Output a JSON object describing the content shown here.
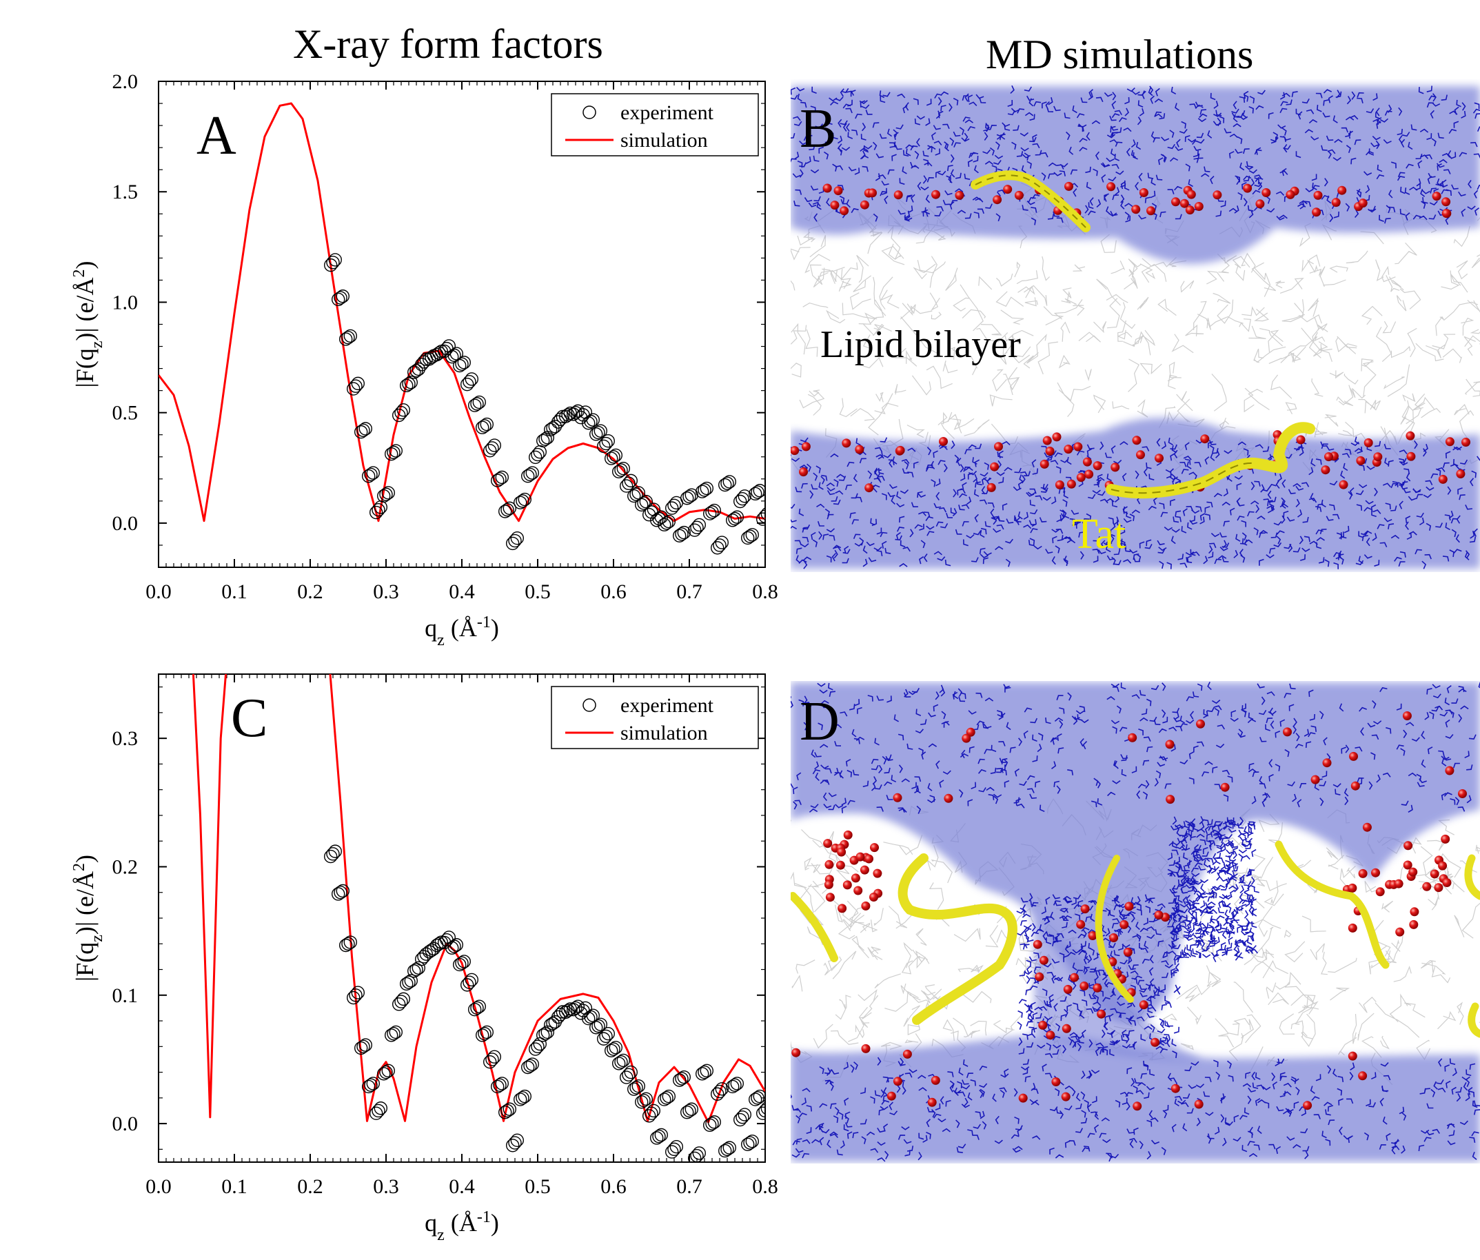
{
  "headers": {
    "left": "X-ray form factors",
    "right": "MD simulations"
  },
  "panels": {
    "A": {
      "letter": "A"
    },
    "B": {
      "letter": "B",
      "label_bilayer": "Lipid bilayer",
      "label_peptide": "Tat"
    },
    "C": {
      "letter": "C"
    },
    "D": {
      "letter": "D"
    }
  },
  "colors": {
    "simulation": "#ff0000",
    "experiment": "#000000",
    "headgroup": "#7b83d8",
    "phosphate": "#e01818",
    "peptide": "#e6e020",
    "lipid_tail": "#c9c9c9"
  },
  "chart_data": [
    {
      "panel": "A",
      "type": "line",
      "xlabel": "q_z (Å^-1)",
      "ylabel": "|F(q_z)| (e/Å^2)",
      "xlim": [
        0.0,
        0.8
      ],
      "ylim": [
        -0.2,
        2.0
      ],
      "xticks": [
        "0.0",
        "0.1",
        "0.2",
        "0.3",
        "0.4",
        "0.5",
        "0.6",
        "0.7",
        "0.8"
      ],
      "yticks": [
        "0.0",
        "0.5",
        "1.0",
        "1.5",
        "2.0"
      ],
      "legend": {
        "position": "top-right",
        "entries": [
          "experiment",
          "simulation"
        ]
      },
      "series": [
        {
          "name": "simulation",
          "style": "line",
          "x": [
            0.0,
            0.02,
            0.04,
            0.06,
            0.08,
            0.1,
            0.12,
            0.14,
            0.16,
            0.175,
            0.19,
            0.21,
            0.23,
            0.25,
            0.27,
            0.29,
            0.31,
            0.33,
            0.35,
            0.37,
            0.39,
            0.41,
            0.43,
            0.45,
            0.475,
            0.5,
            0.52,
            0.54,
            0.56,
            0.58,
            0.6,
            0.62,
            0.64,
            0.66,
            0.68,
            0.7,
            0.72,
            0.74,
            0.76,
            0.78,
            0.8
          ],
          "y": [
            0.67,
            0.58,
            0.35,
            0.01,
            0.45,
            0.95,
            1.42,
            1.75,
            1.89,
            1.9,
            1.83,
            1.55,
            1.1,
            0.66,
            0.26,
            0.01,
            0.4,
            0.67,
            0.77,
            0.78,
            0.68,
            0.48,
            0.3,
            0.14,
            0.01,
            0.19,
            0.29,
            0.34,
            0.36,
            0.34,
            0.29,
            0.21,
            0.13,
            0.06,
            0.01,
            0.05,
            0.06,
            0.05,
            0.02,
            0.03,
            0.02
          ]
        },
        {
          "name": "experiment",
          "style": "markers",
          "x": [
            0.23,
            0.24,
            0.25,
            0.26,
            0.27,
            0.28,
            0.29,
            0.3,
            0.31,
            0.32,
            0.33,
            0.34,
            0.35,
            0.36,
            0.37,
            0.38,
            0.39,
            0.4,
            0.41,
            0.42,
            0.43,
            0.44,
            0.45,
            0.46,
            0.47,
            0.48,
            0.49,
            0.5,
            0.51,
            0.52,
            0.53,
            0.54,
            0.55,
            0.56,
            0.57,
            0.58,
            0.59,
            0.6,
            0.61,
            0.62,
            0.63,
            0.64,
            0.65,
            0.66,
            0.67,
            0.68,
            0.69,
            0.7,
            0.71,
            0.72,
            0.73,
            0.74,
            0.75,
            0.76,
            0.77,
            0.78,
            0.79,
            0.8
          ],
          "y": [
            1.18,
            1.02,
            0.84,
            0.62,
            0.42,
            0.22,
            0.06,
            0.13,
            0.32,
            0.5,
            0.63,
            0.69,
            0.73,
            0.75,
            0.77,
            0.79,
            0.76,
            0.72,
            0.64,
            0.54,
            0.44,
            0.34,
            0.2,
            0.06,
            -0.08,
            0.1,
            0.22,
            0.31,
            0.38,
            0.43,
            0.47,
            0.49,
            0.5,
            0.49,
            0.46,
            0.41,
            0.36,
            0.3,
            0.24,
            0.18,
            0.13,
            0.09,
            0.05,
            0.02,
            0.0,
            0.08,
            -0.05,
            0.12,
            -0.02,
            0.15,
            0.05,
            -0.1,
            0.18,
            0.02,
            0.11,
            -0.06,
            0.14,
            0.03
          ]
        }
      ]
    },
    {
      "panel": "C",
      "type": "line",
      "xlabel": "q_z (Å^-1)",
      "ylabel": "|F(q_z)| (e/Å^2)",
      "xlim": [
        0.0,
        0.8
      ],
      "ylim": [
        -0.03,
        0.35
      ],
      "xticks": [
        "0.0",
        "0.1",
        "0.2",
        "0.3",
        "0.4",
        "0.5",
        "0.6",
        "0.7",
        "0.8"
      ],
      "yticks": [
        "0.0",
        "0.1",
        "0.2",
        "0.3"
      ],
      "legend": {
        "position": "top-right",
        "entries": [
          "experiment",
          "simulation"
        ]
      },
      "series": [
        {
          "name": "simulation",
          "style": "line",
          "x": [
            0.045,
            0.055,
            0.065,
            0.068,
            0.072,
            0.082,
            0.09,
            0.225,
            0.24,
            0.255,
            0.275,
            0.29,
            0.3,
            0.31,
            0.325,
            0.34,
            0.36,
            0.38,
            0.39,
            0.4,
            0.42,
            0.44,
            0.455,
            0.47,
            0.5,
            0.53,
            0.56,
            0.58,
            0.6,
            0.62,
            0.645,
            0.66,
            0.68,
            0.7,
            0.725,
            0.745,
            0.765,
            0.78,
            0.8
          ],
          "y": [
            0.36,
            0.24,
            0.06,
            0.005,
            0.09,
            0.3,
            0.36,
            0.36,
            0.25,
            0.13,
            0.002,
            0.04,
            0.048,
            0.035,
            0.002,
            0.06,
            0.11,
            0.14,
            0.135,
            0.125,
            0.085,
            0.04,
            0.002,
            0.04,
            0.08,
            0.097,
            0.101,
            0.098,
            0.08,
            0.055,
            0.002,
            0.032,
            0.044,
            0.03,
            0.001,
            0.032,
            0.05,
            0.045,
            0.025
          ]
        },
        {
          "name": "experiment",
          "style": "markers",
          "x": [
            0.23,
            0.24,
            0.25,
            0.26,
            0.27,
            0.28,
            0.29,
            0.3,
            0.31,
            0.32,
            0.33,
            0.34,
            0.35,
            0.36,
            0.37,
            0.38,
            0.39,
            0.4,
            0.41,
            0.42,
            0.43,
            0.44,
            0.45,
            0.46,
            0.47,
            0.48,
            0.49,
            0.5,
            0.51,
            0.52,
            0.53,
            0.54,
            0.55,
            0.56,
            0.57,
            0.58,
            0.59,
            0.6,
            0.61,
            0.62,
            0.63,
            0.64,
            0.65,
            0.66,
            0.67,
            0.68,
            0.69,
            0.7,
            0.71,
            0.72,
            0.73,
            0.74,
            0.75,
            0.76,
            0.77,
            0.78,
            0.79,
            0.8
          ],
          "y": [
            0.21,
            0.18,
            0.14,
            0.1,
            0.06,
            0.03,
            0.01,
            0.04,
            0.07,
            0.095,
            0.11,
            0.12,
            0.13,
            0.135,
            0.14,
            0.143,
            0.138,
            0.125,
            0.11,
            0.09,
            0.07,
            0.05,
            0.03,
            0.01,
            -0.015,
            0.02,
            0.045,
            0.06,
            0.07,
            0.078,
            0.085,
            0.088,
            0.09,
            0.088,
            0.083,
            0.076,
            0.068,
            0.058,
            0.048,
            0.038,
            0.028,
            0.018,
            0.008,
            -0.01,
            0.02,
            -0.02,
            0.035,
            0.01,
            -0.025,
            0.04,
            0.0,
            0.025,
            -0.02,
            0.03,
            0.005,
            -0.015,
            0.02,
            0.01
          ]
        }
      ]
    }
  ]
}
